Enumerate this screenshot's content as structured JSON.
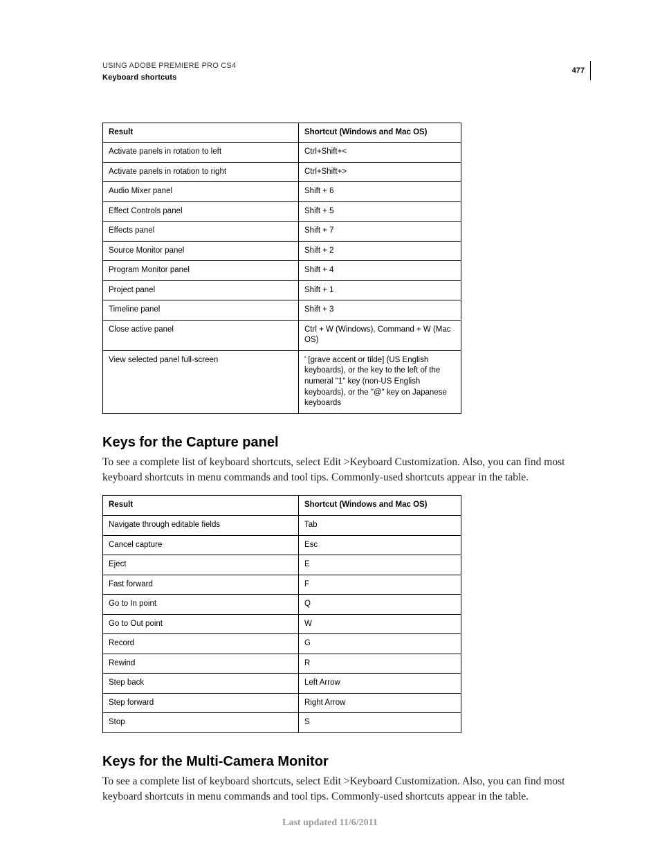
{
  "header": {
    "title": "USING ADOBE PREMIERE PRO CS4",
    "subtitle": "Keyboard shortcuts",
    "page_number": "477"
  },
  "table1": {
    "col1_header": "Result",
    "col2_header": "Shortcut (Windows and Mac OS)",
    "rows": [
      {
        "r": "Activate panels in rotation to left",
        "s": "Ctrl+Shift+<"
      },
      {
        "r": "Activate panels in rotation to right",
        "s": "Ctrl+Shift+>"
      },
      {
        "r": "Audio Mixer panel",
        "s": "Shift + 6"
      },
      {
        "r": "Effect Controls panel",
        "s": "Shift + 5"
      },
      {
        "r": "Effects panel",
        "s": "Shift + 7"
      },
      {
        "r": "Source Monitor panel",
        "s": "Shift + 2"
      },
      {
        "r": "Program Monitor panel",
        "s": "Shift + 4"
      },
      {
        "r": "Project panel",
        "s": "Shift + 1"
      },
      {
        "r": "Timeline panel",
        "s": "Shift + 3"
      },
      {
        "r": "Close active panel",
        "s": "Ctrl + W (Windows), Command + W (Mac OS)"
      },
      {
        "r": "View selected panel full-screen",
        "s": "' [grave accent or tilde] (US English keyboards), or the key to the left of the numeral \"1\" key (non-US English keyboards), or the \"@\" key on Japanese keyboards"
      }
    ]
  },
  "section_capture": {
    "heading": "Keys for the Capture panel",
    "intro": "To see a complete list of keyboard shortcuts, select Edit >Keyboard Customization. Also, you can find most keyboard shortcuts in menu commands and tool tips. Commonly-used shortcuts appear in the table."
  },
  "table2": {
    "col1_header": "Result",
    "col2_header": "Shortcut (Windows and Mac OS)",
    "rows": [
      {
        "r": "Navigate through editable fields",
        "s": "Tab"
      },
      {
        "r": "Cancel capture",
        "s": "Esc"
      },
      {
        "r": "Eject",
        "s": "E"
      },
      {
        "r": "Fast forward",
        "s": "F"
      },
      {
        "r": "Go to In point",
        "s": "Q"
      },
      {
        "r": "Go to Out point",
        "s": "W"
      },
      {
        "r": "Record",
        "s": "G"
      },
      {
        "r": "Rewind",
        "s": "R"
      },
      {
        "r": "Step back",
        "s": "Left Arrow"
      },
      {
        "r": "Step forward",
        "s": "Right Arrow"
      },
      {
        "r": "Stop",
        "s": "S"
      }
    ]
  },
  "section_multicam": {
    "heading": "Keys for the Multi-Camera Monitor",
    "intro": "To see a complete list of keyboard shortcuts, select Edit >Keyboard Customization. Also, you can find most keyboard shortcuts in menu commands and tool tips. Commonly-used shortcuts appear in the table."
  },
  "footer": {
    "text": "Last updated 11/6/2011"
  }
}
